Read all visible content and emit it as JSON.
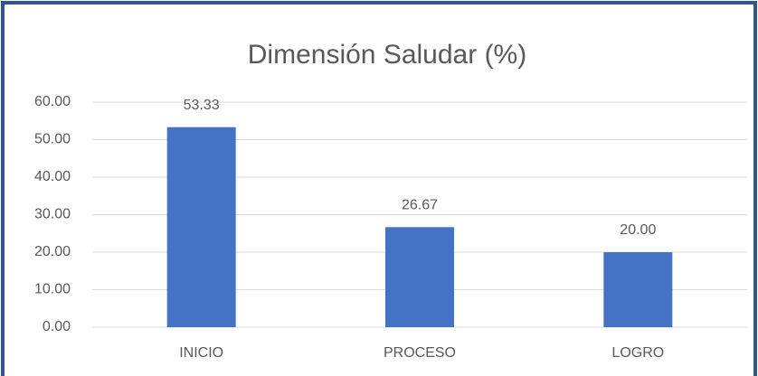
{
  "chart_data": {
    "type": "bar",
    "title": "Dimensión  Saludar (%)",
    "categories": [
      "INICIO",
      "PROCESO",
      "LOGRO"
    ],
    "values": [
      53.33,
      26.67,
      20
    ],
    "value_labels": [
      "53.33",
      "26.67",
      "20.00"
    ],
    "color": "#4472c4",
    "ylim": [
      0,
      60
    ],
    "yticks": [
      {
        "value": 0,
        "label": "0.00"
      },
      {
        "value": 10,
        "label": "10.00"
      },
      {
        "value": 20,
        "label": "20.00"
      },
      {
        "value": 30,
        "label": "30.00"
      },
      {
        "value": 40,
        "label": "40.00"
      },
      {
        "value": 50,
        "label": "50.00"
      },
      {
        "value": 60,
        "label": "60.00"
      }
    ],
    "grid": true
  }
}
